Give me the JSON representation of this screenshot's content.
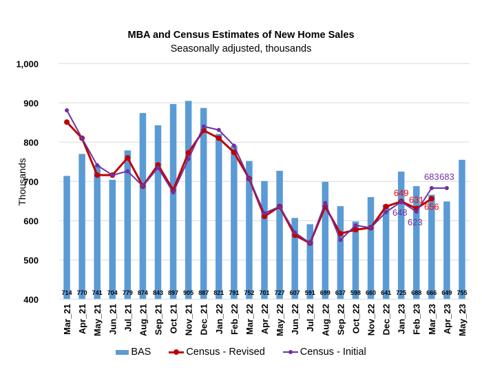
{
  "chart_data": {
    "type": "bar",
    "title": "MBA and Census Estimates of New Home Sales",
    "subtitle": "Seasonally adjusted, thousands",
    "xlabel": "",
    "ylabel": "Thousands",
    "ylim": [
      400,
      1000
    ],
    "yticks": [
      400,
      500,
      600,
      700,
      800,
      900,
      1000
    ],
    "ytick_labels": [
      "400",
      "500",
      "600",
      "700",
      "800",
      "900",
      "1,000"
    ],
    "grid": true,
    "legend_position": "bottom",
    "categories": [
      "Mar_21",
      "Apr_21",
      "May_21",
      "Jun_21",
      "Jul_21",
      "Aug_21",
      "Sep_21",
      "Oct_21",
      "Nov_21",
      "Dec_21",
      "Jan_22",
      "Feb_22",
      "Mar_22",
      "Apr_22",
      "May_22",
      "Jun_22",
      "Jul_22",
      "Aug_22",
      "Sep_22",
      "Oct_22",
      "Nov_22",
      "Dec_22",
      "Jan_23",
      "Feb_23",
      "Mar_23",
      "Apr_23",
      "May_23"
    ],
    "series": [
      {
        "name": "BAS",
        "type": "bar",
        "color": "#5B9BD5",
        "values": [
          714,
          770,
          741,
          704,
          779,
          874,
          843,
          897,
          905,
          887,
          821,
          791,
          752,
          701,
          727,
          607,
          591,
          699,
          637,
          598,
          660,
          641,
          725,
          688,
          666,
          649,
          755
        ],
        "data_labels": [
          "714",
          "770",
          "741",
          "704",
          "779",
          "874",
          "843",
          "897",
          "905",
          "887",
          "821",
          "791",
          "752",
          "701",
          "727",
          "607",
          "591",
          "699",
          "637",
          "598",
          "660",
          "641",
          "725",
          "688",
          "666",
          "649",
          "755"
        ]
      },
      {
        "name": "Census - Revised",
        "type": "line",
        "color": "#C00000",
        "label_color": "#FF0000",
        "values": [
          851,
          810,
          716,
          716,
          760,
          688,
          742,
          678,
          773,
          830,
          810,
          774,
          707,
          611,
          636,
          563,
          543,
          636,
          567,
          577,
          582,
          636,
          649,
          631,
          656,
          null,
          null
        ],
        "data_labels": [
          null,
          null,
          null,
          null,
          null,
          null,
          null,
          null,
          null,
          null,
          null,
          null,
          null,
          null,
          null,
          null,
          null,
          null,
          null,
          null,
          null,
          null,
          "649",
          "631",
          "656",
          null,
          null
        ]
      },
      {
        "name": "Census - Initial",
        "type": "line",
        "color": "#7030A0",
        "label_color": "#7030A0",
        "values": [
          881,
          810,
          741,
          716,
          726,
          688,
          735,
          672,
          757,
          840,
          831,
          791,
          707,
          619,
          636,
          570,
          543,
          645,
          551,
          588,
          582,
          622,
          648,
          623,
          683,
          683,
          null
        ],
        "data_labels": [
          null,
          null,
          null,
          null,
          null,
          null,
          null,
          null,
          null,
          null,
          null,
          null,
          null,
          null,
          null,
          null,
          null,
          null,
          null,
          null,
          null,
          null,
          "648",
          "623",
          "683",
          "683",
          null
        ]
      }
    ]
  }
}
